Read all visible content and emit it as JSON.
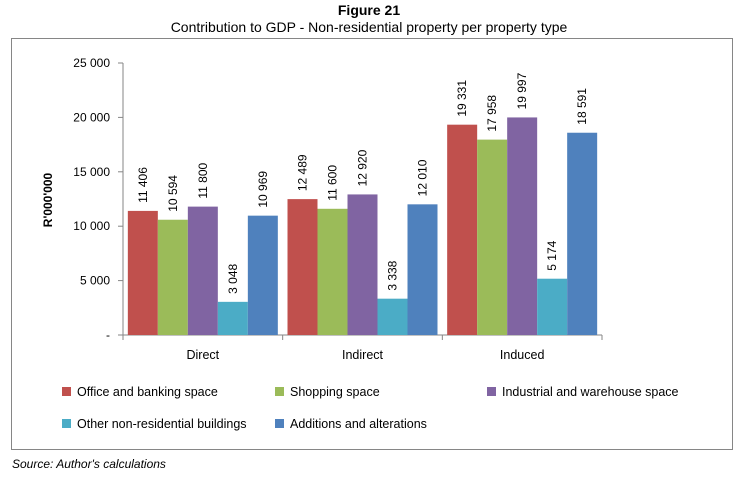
{
  "figure": {
    "number_label": "Figure 21",
    "title": "Contribution to GDP - Non-residential property per property type",
    "source": "Source: Author's calculations"
  },
  "chart_data": {
    "type": "bar",
    "title": "Contribution to GDP - Non-residential property per property type",
    "xlabel": "",
    "ylabel": "R'000'000",
    "ylim": [
      0,
      25000
    ],
    "yticks": [
      0,
      5000,
      10000,
      15000,
      20000,
      25000
    ],
    "ytick_labels": [
      "-",
      "5 000",
      "10 000",
      "15 000",
      "20 000",
      "25 000"
    ],
    "grid": false,
    "legend_position": "bottom",
    "categories": [
      "Direct",
      "Indirect",
      "Induced"
    ],
    "series": [
      {
        "name": "Office and banking space",
        "color": "#C0504D",
        "values": [
          11406,
          12489,
          19331
        ],
        "labels": [
          "11 406",
          "12 489",
          "19 331"
        ]
      },
      {
        "name": "Shopping space",
        "color": "#9BBB59",
        "values": [
          10594,
          11600,
          17958
        ],
        "labels": [
          "10 594",
          "11 600",
          "17 958"
        ]
      },
      {
        "name": "Industrial and warehouse space",
        "color": "#8064A2",
        "values": [
          11800,
          12920,
          19997
        ],
        "labels": [
          "11 800",
          "12 920",
          "19 997"
        ]
      },
      {
        "name": "Other non-residential buildings",
        "color": "#4BACC6",
        "values": [
          3048,
          3338,
          5174
        ],
        "labels": [
          "3 048",
          "3 338",
          "5 174"
        ]
      },
      {
        "name": "Additions and alterations",
        "color": "#4F81BD",
        "values": [
          10969,
          12010,
          18591
        ],
        "labels": [
          "10 969",
          "12 010",
          "18 591"
        ]
      }
    ]
  }
}
